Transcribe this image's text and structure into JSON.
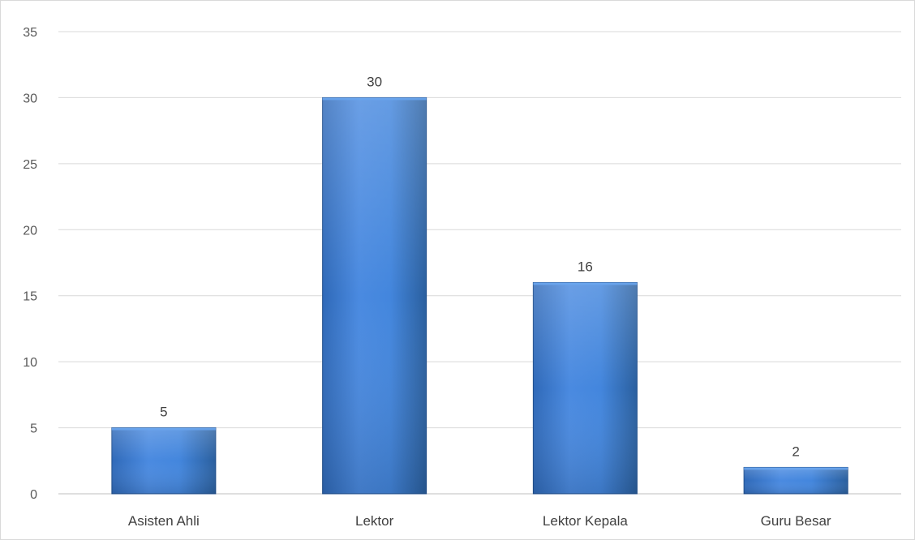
{
  "chart_data": {
    "type": "bar",
    "categories": [
      "Asisten Ahli",
      "Lektor",
      "Lektor Kepala",
      "Guru Besar"
    ],
    "values": [
      5,
      30,
      16,
      2
    ],
    "title": "",
    "xlabel": "",
    "ylabel": "",
    "ylim": [
      0,
      35
    ],
    "yticks": [
      0,
      5,
      10,
      15,
      20,
      25,
      30,
      35
    ],
    "grid": true,
    "legend": "none",
    "data_labels": true,
    "colors": {
      "bar_top": "#5a9ae6",
      "bar_mid": "#3f7fd4",
      "bar_bottom": "#2a5f9e",
      "bar_edge": "#1f4e8c"
    }
  }
}
